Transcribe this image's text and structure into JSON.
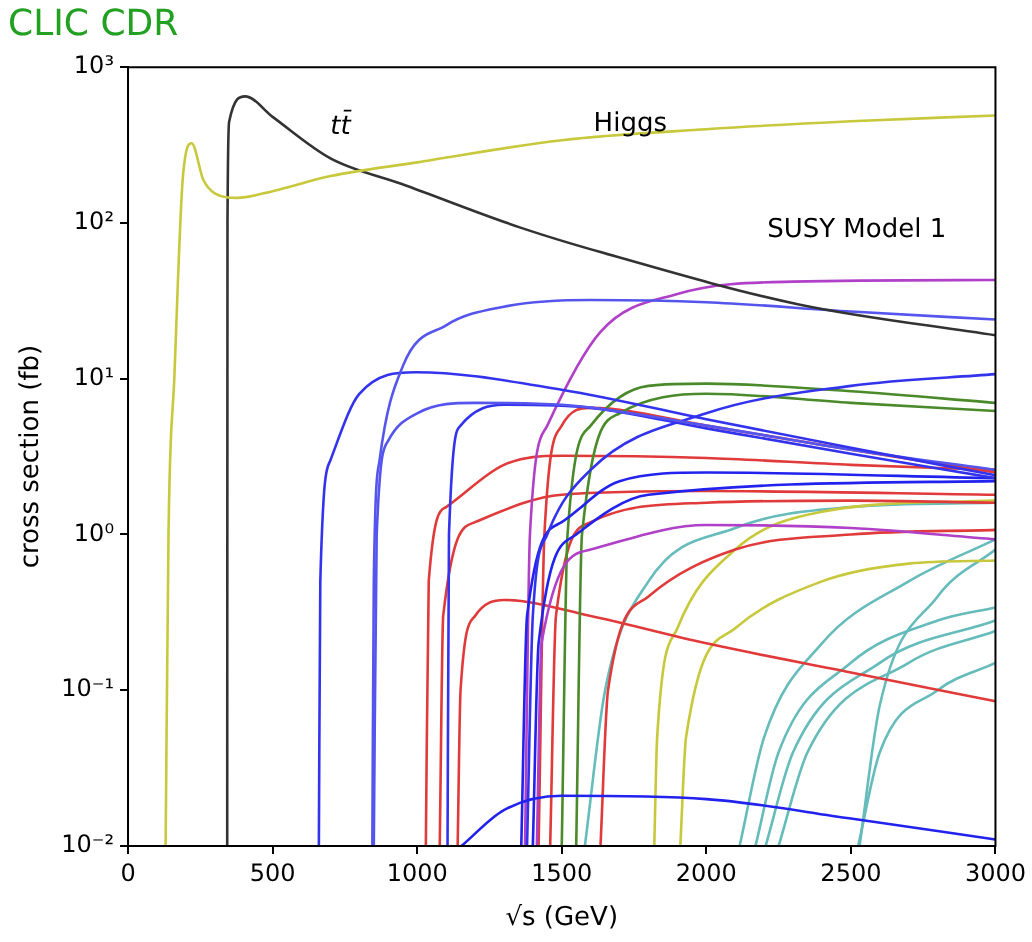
{
  "chart_data": {
    "type": "line",
    "title": "CLIC CDR",
    "xlabel": "√s (GeV)",
    "ylabel": "cross section (fb)",
    "log": "y",
    "grid": false,
    "legend": false,
    "marker": "none",
    "line_style": "solid",
    "xlim": [
      0,
      3000
    ],
    "xticks": [
      0,
      500,
      1000,
      1500,
      2000,
      2500,
      3000
    ],
    "ylim": [
      0.01,
      1000
    ],
    "yticks": [
      {
        "value": 0.01,
        "label": "10⁻²"
      },
      {
        "value": 0.1,
        "label": "10⁻¹"
      },
      {
        "value": 1,
        "label": "10⁰"
      },
      {
        "value": 10,
        "label": "10¹"
      },
      {
        "value": 100,
        "label": "10²"
      },
      {
        "value": 1000,
        "label": "10³"
      }
    ],
    "annotations": [
      "tt̄",
      {
        "text": "Higgs",
        "x": 1737,
        "y": 430
      },
      "SUSY Model 1"
    ],
    "series": [
      {
        "color": "#c8c83c",
        "x": [
          130,
          140,
          160,
          190,
          220,
          260,
          300,
          378,
          500,
          700,
          1000,
          1500,
          2000,
          2500,
          3000
        ],
        "values": [
          0.01,
          1,
          10,
          200,
          325,
          190,
          155,
          145,
          160,
          200,
          245,
          340,
          400,
          450,
          490
        ]
      },
      {
        "color": "#333333",
        "x": [
          343,
          344,
          350,
          405,
          500,
          700,
          947,
          1360,
          1634,
          2320,
          3000
        ],
        "values": [
          0.01,
          100,
          450,
          650,
          480,
          260,
          178,
          93,
          65,
          30,
          19
        ]
      },
      {
        "color": "#5555ee",
        "x": [
          845,
          850,
          870,
          950,
          1100,
          1300,
          1600,
          2000,
          2500,
          3000
        ],
        "values": [
          0.01,
          0.5,
          3,
          12,
          22,
          29,
          32,
          31,
          27,
          24
        ]
      },
      {
        "color": "#3333ee",
        "x": [
          660,
          665,
          700,
          800,
          995,
          1500,
          2000,
          2500,
          3000
        ],
        "values": [
          0.01,
          0.5,
          3,
          8,
          11,
          8.5,
          5.5,
          3.6,
          2.4
        ]
      },
      {
        "color": "#5555ee",
        "x": [
          850,
          860,
          900,
          1000,
          1200,
          1500,
          2000,
          2500,
          3000
        ],
        "values": [
          0.01,
          1,
          4,
          6,
          7,
          6.8,
          5,
          3.5,
          2.6
        ]
      },
      {
        "color": "#3333ee",
        "x": [
          1105,
          1110,
          1150,
          1300,
          1600,
          2000,
          2500,
          3000
        ],
        "values": [
          0.01,
          1,
          5,
          6.8,
          6.5,
          4.8,
          3.3,
          2.3
        ]
      },
      {
        "color": "#2222ee",
        "x": [
          1153,
          1300,
          1500,
          2000,
          2500,
          3000
        ],
        "values": [
          0.01,
          0.017,
          0.021,
          0.02,
          0.015,
          0.011
        ]
      },
      {
        "color": "#3333ee",
        "x": [
          1380,
          1400,
          1450,
          1600,
          2000,
          2500,
          3000
        ],
        "values": [
          0.01,
          0.3,
          1,
          2.6,
          6,
          9,
          10.7
        ]
      },
      {
        "color": "#2222ee",
        "x": [
          1360,
          1380,
          1500,
          1700,
          2000,
          3000
        ],
        "values": [
          0.01,
          0.3,
          1.2,
          2.2,
          2.5,
          2.3
        ]
      },
      {
        "color": "#2222ee",
        "x": [
          1400,
          1420,
          1550,
          1800,
          3000
        ],
        "values": [
          0.01,
          0.2,
          1,
          1.8,
          2.2
        ]
      },
      {
        "color": "#b040c8",
        "x": [
          1373,
          1390,
          1450,
          1634,
          1900,
          2300,
          3000
        ],
        "values": [
          0.01,
          1,
          5,
          20,
          35,
          42,
          43
        ]
      },
      {
        "color": "#b040c8",
        "x": [
          1414,
          1430,
          1600,
          2000,
          2500,
          3000
        ],
        "values": [
          0.01,
          0.2,
          0.8,
          1.15,
          1.1,
          0.93
        ]
      },
      {
        "color": "#4a8a2a",
        "x": [
          1500,
          1520,
          1600,
          1800,
          2000,
          2500,
          3000
        ],
        "values": [
          0.01,
          1,
          5,
          9,
          9.3,
          8.3,
          7
        ]
      },
      {
        "color": "#4a8a2a",
        "x": [
          1550,
          1570,
          1700,
          2000,
          2500,
          3000
        ],
        "values": [
          0.01,
          1,
          6,
          8,
          7,
          6.2
        ]
      },
      {
        "color": "#e03a3a",
        "x": [
          1030,
          1040,
          1100,
          1300,
          1500,
          2000,
          2500,
          3000
        ],
        "values": [
          0.01,
          0.5,
          1.5,
          2.8,
          3.2,
          3.1,
          2.8,
          2.6
        ]
      },
      {
        "color": "#e03a3a",
        "x": [
          1078,
          1090,
          1200,
          1500,
          2000,
          3000
        ],
        "values": [
          0.01,
          0.3,
          1.2,
          1.8,
          1.9,
          1.8
        ]
      },
      {
        "color": "#e03a3a",
        "x": [
          1140,
          1150,
          1200,
          1300,
          1600,
          2000,
          2500,
          3000
        ],
        "values": [
          0.01,
          0.1,
          0.3,
          0.38,
          0.3,
          0.2,
          0.13,
          0.085
        ]
      },
      {
        "color": "#e03a3a",
        "x": [
          1634,
          1660,
          1800,
          2100,
          2500,
          3000
        ],
        "values": [
          0.01,
          0.1,
          0.4,
          0.8,
          1,
          1.07
        ]
      },
      {
        "color": "#e03a3a",
        "x": [
          1420,
          1440,
          1500,
          1600,
          2000,
          2500,
          3000
        ],
        "values": [
          0.01,
          1,
          5,
          6.5,
          5,
          3.5,
          2.5
        ]
      },
      {
        "color": "#e03a3a",
        "x": [
          1460,
          1480,
          1600,
          2000,
          2500,
          3000
        ],
        "values": [
          0.01,
          0.3,
          1.2,
          1.6,
          1.65,
          1.6
        ]
      },
      {
        "color": "#c8c83c",
        "x": [
          1820,
          1830,
          1900,
          2100,
          2400,
          3000
        ],
        "values": [
          0.01,
          0.05,
          0.25,
          0.8,
          1.4,
          1.66
        ]
      },
      {
        "color": "#c8c83c",
        "x": [
          1910,
          1930,
          2100,
          2400,
          2700,
          3000
        ],
        "values": [
          0.01,
          0.05,
          0.25,
          0.5,
          0.65,
          0.68
        ]
      },
      {
        "color": "#66bbbb",
        "x": [
          2115,
          2200,
          2400,
          2700,
          3000
        ],
        "values": [
          0.01,
          0.05,
          0.2,
          0.5,
          0.93
        ]
      },
      {
        "color": "#66bbbb",
        "x": [
          2170,
          2250,
          2500,
          2800,
          3000
        ],
        "values": [
          0.01,
          0.04,
          0.15,
          0.28,
          0.34
        ]
      },
      {
        "color": "#66bbbb",
        "x": [
          2205,
          2300,
          2600,
          3000
        ],
        "values": [
          0.01,
          0.04,
          0.15,
          0.28
        ]
      },
      {
        "color": "#66bbbb",
        "x": [
          2250,
          2350,
          2700,
          3000
        ],
        "values": [
          0.01,
          0.04,
          0.15,
          0.24
        ]
      },
      {
        "color": "#66bbbb",
        "x": [
          2525,
          2600,
          2800,
          3000
        ],
        "values": [
          0.01,
          0.04,
          0.1,
          0.15
        ]
      },
      {
        "color": "#66bbbb",
        "x": [
          1580,
          1650,
          1800,
          2100,
          2500,
          3000
        ],
        "values": [
          0.01,
          0.1,
          0.5,
          1.1,
          1.5,
          1.6
        ]
      },
      {
        "color": "#66bbbb",
        "x": [
          2530,
          2600,
          2800,
          3000
        ],
        "values": [
          0.01,
          0.08,
          0.4,
          0.8
        ]
      }
    ]
  }
}
